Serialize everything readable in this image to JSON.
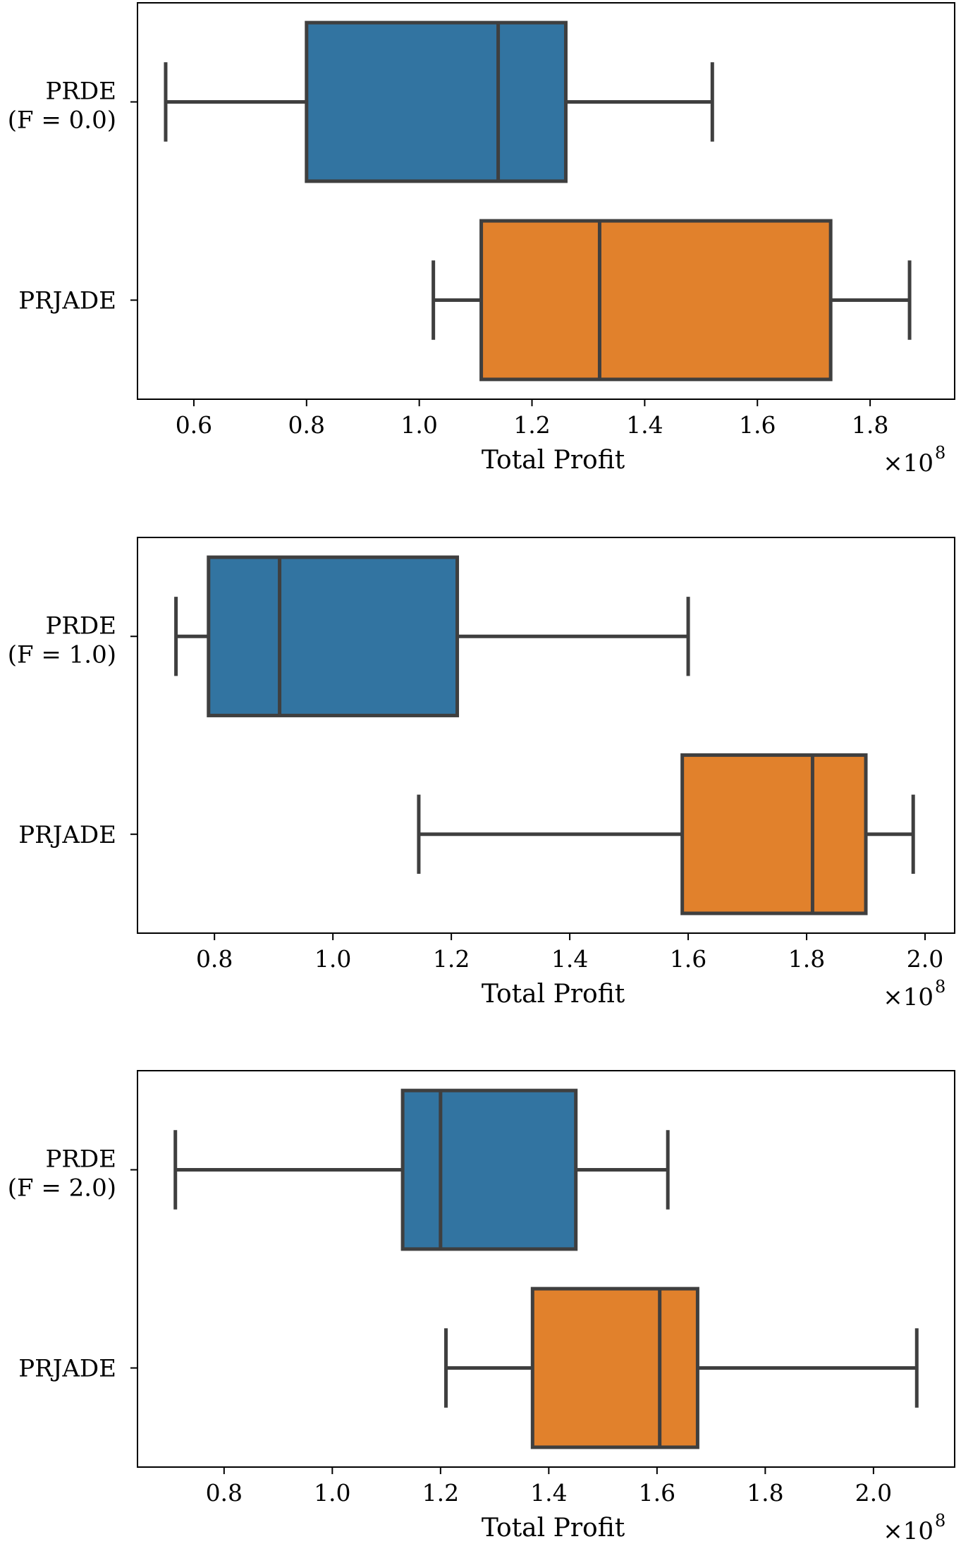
{
  "chart_data": [
    {
      "type": "boxplot",
      "orientation": "horizontal",
      "xlabel": "Total Profit",
      "x_multiplier": "×10",
      "x_multiplier_exp": "8",
      "xlim": [
        0.5,
        1.95
      ],
      "xticks": [
        0.6,
        0.8,
        1.0,
        1.2,
        1.4,
        1.6,
        1.8
      ],
      "xtick_labels": [
        "0.6",
        "0.8",
        "1.0",
        "1.2",
        "1.4",
        "1.6",
        "1.8"
      ],
      "grid": false,
      "series": [
        {
          "label_line1": "PRDE",
          "label_line2": "(F = 0.0)",
          "color": "#3274a1",
          "whisker_low": 0.55,
          "q1": 0.8,
          "median": 1.14,
          "q3": 1.26,
          "whisker_high": 1.52
        },
        {
          "label_line1": "PRJADE",
          "label_line2": "",
          "color": "#e1812c",
          "whisker_low": 1.025,
          "q1": 1.11,
          "median": 1.32,
          "q3": 1.73,
          "whisker_high": 1.87
        }
      ]
    },
    {
      "type": "boxplot",
      "orientation": "horizontal",
      "xlabel": "Total Profit",
      "x_multiplier": "×10",
      "x_multiplier_exp": "8",
      "xlim": [
        0.67,
        2.05
      ],
      "xticks": [
        0.8,
        1.0,
        1.2,
        1.4,
        1.6,
        1.8,
        2.0
      ],
      "xtick_labels": [
        "0.8",
        "1.0",
        "1.2",
        "1.4",
        "1.6",
        "1.8",
        "2.0"
      ],
      "grid": false,
      "series": [
        {
          "label_line1": "PRDE",
          "label_line2": "(F = 1.0)",
          "color": "#3274a1",
          "whisker_low": 0.735,
          "q1": 0.79,
          "median": 0.91,
          "q3": 1.21,
          "whisker_high": 1.6
        },
        {
          "label_line1": "PRJADE",
          "label_line2": "",
          "color": "#e1812c",
          "whisker_low": 1.145,
          "q1": 1.59,
          "median": 1.81,
          "q3": 1.9,
          "whisker_high": 1.98
        }
      ]
    },
    {
      "type": "boxplot",
      "orientation": "horizontal",
      "xlabel": "Total Profit",
      "x_multiplier": "×10",
      "x_multiplier_exp": "8",
      "xlim": [
        0.64,
        2.15
      ],
      "xticks": [
        0.8,
        1.0,
        1.2,
        1.4,
        1.6,
        1.8,
        2.0
      ],
      "xtick_labels": [
        "0.8",
        "1.0",
        "1.2",
        "1.4",
        "1.6",
        "1.8",
        "2.0"
      ],
      "grid": false,
      "series": [
        {
          "label_line1": "PRDE",
          "label_line2": "(F = 2.0)",
          "color": "#3274a1",
          "whisker_low": 0.71,
          "q1": 1.13,
          "median": 1.2,
          "q3": 1.45,
          "whisker_high": 1.62
        },
        {
          "label_line1": "PRJADE",
          "label_line2": "",
          "color": "#e1812c",
          "whisker_low": 1.21,
          "q1": 1.37,
          "median": 1.605,
          "q3": 1.675,
          "whisker_high": 2.08
        }
      ]
    }
  ]
}
